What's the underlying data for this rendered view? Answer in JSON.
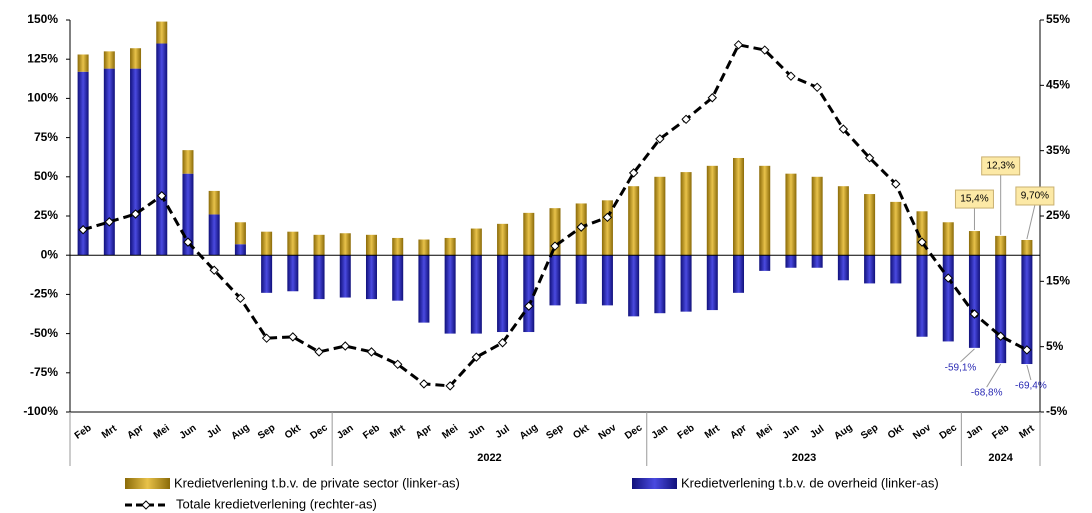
{
  "chart_data": {
    "type": "bar",
    "category_groups": [
      {
        "year": null,
        "categories": [
          "Feb",
          "Mrt",
          "Apr",
          "Mei",
          "Jun",
          "Jul",
          "Aug",
          "Sep",
          "Okt",
          "Dec"
        ]
      },
      {
        "year": "2022",
        "categories": [
          "Jan",
          "Feb",
          "Mrt",
          "Apr",
          "Mei",
          "Jun",
          "Jul",
          "Aug",
          "Sep",
          "Okt",
          "Nov",
          "Dec"
        ]
      },
      {
        "year": "2023",
        "categories": [
          "Jan",
          "Feb",
          "Mrt",
          "Apr",
          "Mei",
          "Jun",
          "Jul",
          "Aug",
          "Sep",
          "Okt",
          "Nov",
          "Dec"
        ]
      },
      {
        "year": "2024",
        "categories": [
          "Jan",
          "Feb",
          "Mrt"
        ]
      }
    ],
    "series": [
      {
        "name": "Kredietverlening t.b.v. de private sector (linker-as)",
        "color": "#c9a11e",
        "values": [
          11,
          11,
          13,
          14,
          15,
          15,
          14,
          15,
          15,
          13,
          14,
          13,
          11,
          10,
          11,
          17,
          20,
          27,
          30,
          33,
          35,
          44,
          50,
          53,
          57,
          62,
          57,
          52,
          50,
          44,
          39,
          34,
          28,
          21,
          15.4,
          12.3,
          9.7
        ],
        "value_labels": [
          null,
          null,
          null,
          null,
          null,
          null,
          null,
          null,
          null,
          null,
          null,
          null,
          null,
          null,
          null,
          null,
          null,
          null,
          null,
          null,
          null,
          null,
          null,
          null,
          null,
          null,
          null,
          null,
          null,
          null,
          null,
          null,
          null,
          null,
          "15,4%",
          "12,3%",
          "9,70%"
        ]
      },
      {
        "name": "Kredietverlening t.b.v. de overheid (linker-as)",
        "color": "#2a2ab4",
        "values": [
          117,
          119,
          119,
          135,
          52,
          26,
          7,
          -24,
          -23,
          -28,
          -27,
          -28,
          -29,
          -43,
          -50,
          -50,
          -49,
          -49,
          -32,
          -31,
          -32,
          -39,
          -37,
          -36,
          -35,
          -24,
          -10,
          -8,
          -8,
          -16,
          -18,
          -18,
          -52,
          -55,
          -59.1,
          -68.8,
          -69.4
        ],
        "value_labels": [
          null,
          null,
          null,
          null,
          null,
          null,
          null,
          null,
          null,
          null,
          null,
          null,
          null,
          null,
          null,
          null,
          null,
          null,
          null,
          null,
          null,
          null,
          null,
          null,
          null,
          null,
          null,
          null,
          null,
          null,
          null,
          null,
          null,
          null,
          "-59,1%",
          "-68,8%",
          "-69,4%"
        ]
      },
      {
        "name": "Totale kredietverlening (rechter-as)",
        "type": "line",
        "axis": "y2",
        "color": "#000000",
        "values": [
          22.9,
          24.1,
          25.3,
          28.1,
          21,
          16.7,
          12.4,
          6.3,
          6.5,
          4.2,
          5.1,
          4.2,
          2.3,
          -0.7,
          -1,
          3.4,
          5.6,
          11.2,
          20.4,
          23.3,
          24.8,
          31.6,
          36.8,
          39.8,
          43.1,
          51.2,
          50.4,
          46.4,
          44.7,
          38.3,
          33.9,
          29.9,
          21,
          15.5,
          10,
          6.6,
          4.5
        ]
      }
    ],
    "ylim": [
      -100,
      150
    ],
    "yticks": [
      {
        "value": -100,
        "label": "-100%"
      },
      {
        "value": -75,
        "label": "-75%"
      },
      {
        "value": -50,
        "label": "-50%"
      },
      {
        "value": -25,
        "label": "-25%"
      },
      {
        "value": 0,
        "label": "0%"
      },
      {
        "value": 25,
        "label": "25%"
      },
      {
        "value": 50,
        "label": "50%"
      },
      {
        "value": 75,
        "label": "75%"
      },
      {
        "value": 100,
        "label": "100%"
      },
      {
        "value": 125,
        "label": "125%"
      },
      {
        "value": 150,
        "label": "150%"
      }
    ],
    "y2lim": [
      -5,
      55
    ],
    "y2ticks": [
      {
        "value": -5,
        "label": "-5%"
      },
      {
        "value": 5,
        "label": "5%"
      },
      {
        "value": 15,
        "label": "15%"
      },
      {
        "value": 25,
        "label": "25%"
      },
      {
        "value": 35,
        "label": "35%"
      },
      {
        "value": 45,
        "label": "45%"
      },
      {
        "value": 55,
        "label": "55%"
      }
    ]
  }
}
